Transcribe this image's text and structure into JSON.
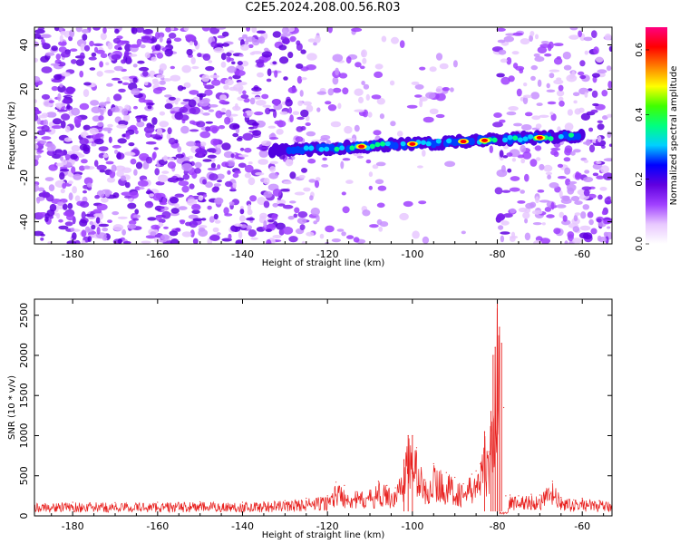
{
  "figure": {
    "title": "C2E5.2024.208.00.56.R03"
  },
  "chart_data": [
    {
      "type": "heatmap",
      "title": "C2E5.2024.208.00.56.R03",
      "xlabel": "Height of straight line (km)",
      "ylabel": "Frequency (Hz)",
      "xlim": [
        -189,
        -53
      ],
      "ylim": [
        -50,
        48
      ],
      "xticks": [
        -180,
        -160,
        -140,
        -120,
        -100,
        -80,
        -60
      ],
      "yticks": [
        -40,
        -20,
        0,
        20,
        40
      ],
      "colorbar": {
        "label": "Normalized spectral amplitude",
        "range": [
          0,
          0.67
        ],
        "ticks": [
          "0.0",
          "0.2",
          "0.4",
          "0.6"
        ],
        "tick_values": [
          0,
          0.2,
          0.4,
          0.6
        ],
        "colors": [
          "#ffffff",
          "#e8c8ff",
          "#a040ff",
          "#6000e0",
          "#0000ff",
          "#00d0ff",
          "#00ff80",
          "#40ff00",
          "#ffff00",
          "#ff8000",
          "#ff0000",
          "#ff0080"
        ]
      },
      "signal_track": {
        "x_range": [
          -133,
          -60
        ],
        "frequency_at_start": -8,
        "frequency_at_end": -1,
        "peak_amplitude": 0.67,
        "strongest_segments_x": [
          -112,
          -100,
          -88,
          -83,
          -70
        ]
      },
      "quiet_gaps_x": [
        [
          -107,
          -96
        ],
        [
          -92,
          -80
        ]
      ]
    },
    {
      "type": "line",
      "xlabel": "Height of straight line (km)",
      "ylabel": "SNR (10 * v/v)",
      "xlim": [
        -189,
        -53
      ],
      "ylim": [
        0,
        2700
      ],
      "xticks": [
        -180,
        -160,
        -140,
        -120,
        -100,
        -80,
        -60
      ],
      "yticks": [
        0,
        500,
        1000,
        1500,
        2000,
        2500
      ],
      "color": "#e8201e",
      "series": [
        {
          "x": [
            -189,
            -180,
            -170,
            -160,
            -150,
            -140,
            -130,
            -125,
            -120,
            -118,
            -116,
            -113,
            -110,
            -108,
            -106,
            -104,
            -102,
            -101,
            -100,
            -99,
            -97,
            -95,
            -92,
            -90,
            -88,
            -86,
            -85,
            -84,
            -83,
            -82,
            -81.5,
            -81,
            -80.5,
            -80,
            -79.5,
            -79,
            -78.5,
            -78,
            -77,
            -75,
            -72,
            -70,
            -67,
            -65,
            -62,
            -60,
            -56,
            -53
          ],
          "values": [
            160,
            170,
            165,
            170,
            175,
            170,
            190,
            220,
            250,
            420,
            380,
            300,
            320,
            430,
            380,
            350,
            700,
            1000,
            1000,
            850,
            450,
            650,
            540,
            480,
            400,
            520,
            560,
            650,
            1050,
            800,
            1300,
            2000,
            2100,
            2700,
            2350,
            2150,
            1350,
            250,
            260,
            250,
            270,
            260,
            430,
            230,
            200,
            220,
            190,
            170
          ]
        }
      ]
    }
  ]
}
